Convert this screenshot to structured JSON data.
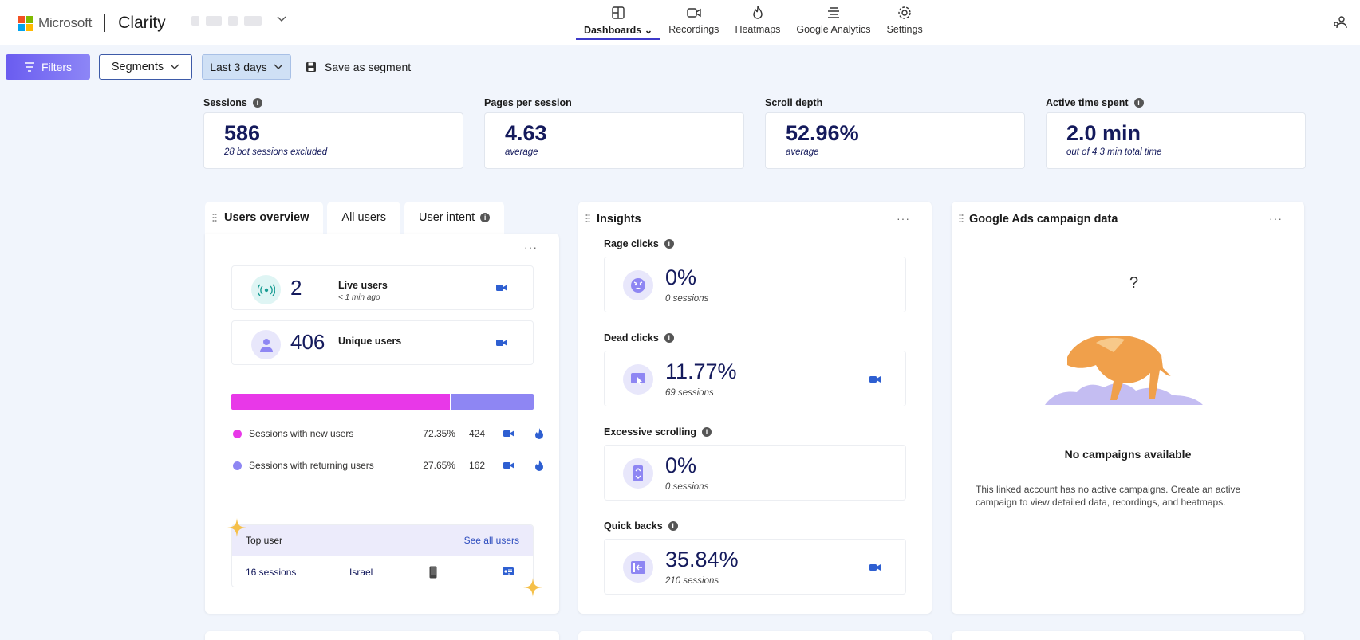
{
  "header": {
    "brand": "Microsoft",
    "product": "Clarity",
    "logo_colors": [
      "#f25022",
      "#7fba00",
      "#00a4ef",
      "#ffb900"
    ],
    "nav": [
      {
        "label": "Dashboards",
        "icon": "dashboard-icon",
        "active": true
      },
      {
        "label": "Recordings",
        "icon": "video-camera-icon"
      },
      {
        "label": "Heatmaps",
        "icon": "flame-icon"
      },
      {
        "label": "Google Analytics",
        "icon": "analytics-icon"
      },
      {
        "label": "Settings",
        "icon": "gear-icon"
      }
    ]
  },
  "toolbar": {
    "filters_label": "Filters",
    "segments_label": "Segments",
    "date_range_label": "Last 3 days",
    "save_segment_label": "Save as segment"
  },
  "metrics": [
    {
      "label": "Sessions",
      "value": "586",
      "sub": "28 bot sessions excluded",
      "info": true
    },
    {
      "label": "Pages per session",
      "value": "4.63",
      "sub": "average",
      "info": false
    },
    {
      "label": "Scroll depth",
      "value": "52.96%",
      "sub": "average",
      "info": false
    },
    {
      "label": "Active time spent",
      "value": "2.0 min",
      "sub": "out of 4.3 min total time",
      "info": true
    }
  ],
  "users": {
    "tabs": [
      "Users overview",
      "All users",
      "User intent"
    ],
    "live_value": "2",
    "live_label": "Live users",
    "live_sub": "< 1 min ago",
    "unique_value": "406",
    "unique_label": "Unique users",
    "new_fraction": 0.7235,
    "rows": [
      {
        "label": "Sessions with new users",
        "pct": "72.35%",
        "count": "424",
        "color": "#e838e8"
      },
      {
        "label": "Sessions with returning users",
        "pct": "27.65%",
        "count": "162",
        "color": "#8e86f3"
      }
    ],
    "top_user_label": "Top user",
    "see_all_label": "See all users",
    "top_sessions": "16 sessions",
    "top_country": "Israel"
  },
  "insights": {
    "title": "Insights",
    "items": [
      {
        "label": "Rage clicks",
        "value": "0%",
        "sub": "0 sessions",
        "icon": "angry-face-icon",
        "camera": false
      },
      {
        "label": "Dead clicks",
        "value": "11.77%",
        "sub": "69 sessions",
        "icon": "dead-click-icon",
        "camera": true
      },
      {
        "label": "Excessive scrolling",
        "value": "0%",
        "sub": "0 sessions",
        "icon": "scroll-icon",
        "camera": false
      },
      {
        "label": "Quick backs",
        "value": "35.84%",
        "sub": "210 sessions",
        "icon": "back-arrow-icon",
        "camera": true
      }
    ]
  },
  "ads": {
    "title": "Google Ads campaign data",
    "question": "?",
    "empty_title": "No campaigns available",
    "empty_desc": "This linked account has no active campaigns. Create an active campaign to view detailed data, recordings, and heatmaps."
  },
  "accent": "#3d3ac9",
  "camera_color": "#2e5fd1"
}
